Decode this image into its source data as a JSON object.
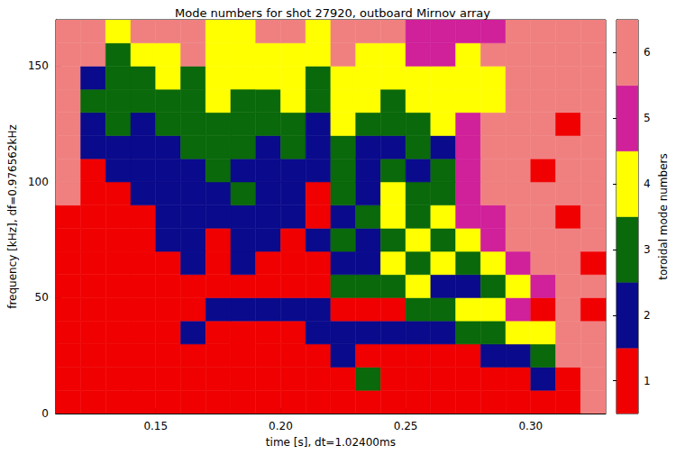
{
  "chart_data": {
    "type": "heatmap",
    "title": "Mode numbers for shot 27920, outboard Mirnov array",
    "x_label": "time [s], dt=1.02400ms",
    "y_label": "frequency [kHz], df=0.976562kHz",
    "xlim": [
      0.11,
      0.33
    ],
    "xticks": [
      {
        "value": 0.15,
        "label": "0.15"
      },
      {
        "value": 0.2,
        "label": "0.20"
      },
      {
        "value": 0.25,
        "label": "0.25"
      },
      {
        "value": 0.3,
        "label": "0.30"
      }
    ],
    "ylim": [
      0,
      170
    ],
    "yticks": [
      0,
      50,
      100,
      150
    ],
    "x_edges": [
      0.11,
      0.12,
      0.13,
      0.14,
      0.15,
      0.16,
      0.17,
      0.18,
      0.19,
      0.2,
      0.21,
      0.22,
      0.23,
      0.24,
      0.25,
      0.26,
      0.27,
      0.28,
      0.29,
      0.3,
      0.31,
      0.32,
      0.33
    ],
    "y_edges": [
      0,
      10,
      20,
      30,
      40,
      50,
      60,
      70,
      80,
      90,
      100,
      110,
      120,
      130,
      140,
      150,
      160,
      170
    ],
    "cells": [
      [
        1,
        1,
        1,
        1,
        1,
        1,
        1,
        1,
        1,
        1,
        1,
        1,
        1,
        1,
        1,
        1,
        1,
        1,
        1,
        1,
        1,
        6
      ],
      [
        1,
        1,
        1,
        1,
        1,
        1,
        1,
        1,
        1,
        1,
        1,
        1,
        3,
        1,
        1,
        1,
        1,
        1,
        1,
        2,
        1,
        6
      ],
      [
        1,
        1,
        1,
        1,
        1,
        1,
        1,
        1,
        1,
        1,
        1,
        2,
        1,
        1,
        1,
        1,
        1,
        2,
        2,
        3,
        6,
        6
      ],
      [
        1,
        1,
        1,
        1,
        1,
        2,
        1,
        1,
        1,
        1,
        2,
        2,
        2,
        2,
        2,
        2,
        3,
        3,
        4,
        4,
        6,
        6
      ],
      [
        1,
        1,
        1,
        1,
        1,
        1,
        2,
        2,
        2,
        2,
        2,
        1,
        1,
        1,
        3,
        3,
        4,
        4,
        5,
        1,
        6,
        1
      ],
      [
        1,
        1,
        1,
        1,
        1,
        1,
        1,
        1,
        1,
        1,
        1,
        3,
        3,
        3,
        4,
        2,
        2,
        3,
        4,
        5,
        6,
        6
      ],
      [
        1,
        1,
        1,
        1,
        1,
        2,
        1,
        2,
        1,
        1,
        1,
        2,
        2,
        4,
        3,
        4,
        3,
        4,
        5,
        6,
        6,
        1
      ],
      [
        1,
        1,
        1,
        1,
        2,
        2,
        1,
        2,
        2,
        1,
        2,
        3,
        2,
        3,
        4,
        3,
        4,
        5,
        6,
        6,
        6,
        6
      ],
      [
        1,
        1,
        1,
        1,
        2,
        2,
        2,
        2,
        2,
        2,
        1,
        2,
        3,
        4,
        3,
        4,
        5,
        5,
        6,
        6,
        1,
        6
      ],
      [
        6,
        1,
        1,
        2,
        2,
        2,
        2,
        3,
        2,
        2,
        1,
        3,
        2,
        4,
        3,
        3,
        5,
        6,
        6,
        6,
        6,
        6
      ],
      [
        6,
        1,
        2,
        2,
        2,
        2,
        3,
        2,
        2,
        2,
        2,
        3,
        2,
        3,
        2,
        3,
        5,
        6,
        6,
        1,
        6,
        6
      ],
      [
        6,
        2,
        2,
        2,
        2,
        3,
        3,
        3,
        2,
        3,
        2,
        3,
        2,
        2,
        3,
        2,
        5,
        6,
        6,
        6,
        6,
        6
      ],
      [
        6,
        2,
        3,
        2,
        3,
        3,
        3,
        3,
        3,
        3,
        2,
        4,
        3,
        3,
        3,
        4,
        5,
        6,
        6,
        6,
        1,
        6
      ],
      [
        6,
        3,
        3,
        3,
        3,
        3,
        4,
        3,
        3,
        4,
        3,
        4,
        4,
        3,
        4,
        4,
        4,
        4,
        6,
        6,
        6,
        6
      ],
      [
        6,
        2,
        3,
        3,
        4,
        3,
        4,
        4,
        4,
        4,
        3,
        4,
        4,
        4,
        4,
        4,
        4,
        4,
        6,
        6,
        6,
        6
      ],
      [
        6,
        6,
        3,
        4,
        4,
        6,
        4,
        4,
        4,
        4,
        4,
        6,
        4,
        4,
        5,
        5,
        4,
        6,
        6,
        6,
        6,
        6
      ],
      [
        6,
        6,
        4,
        6,
        6,
        6,
        4,
        4,
        6,
        6,
        4,
        6,
        6,
        6,
        5,
        5,
        5,
        5,
        6,
        6,
        6,
        6
      ]
    ],
    "colorbar": {
      "label": "toroidal mode numbers",
      "levels": [
        1,
        2,
        3,
        4,
        5,
        6
      ],
      "colors": [
        "#f00000",
        "#0a0a8c",
        "#0a690a",
        "#ffff00",
        "#d0209a",
        "#f08080"
      ],
      "range": [
        0.5,
        6.5
      ],
      "ticks": [
        1,
        2,
        3,
        4,
        5,
        6
      ]
    }
  }
}
